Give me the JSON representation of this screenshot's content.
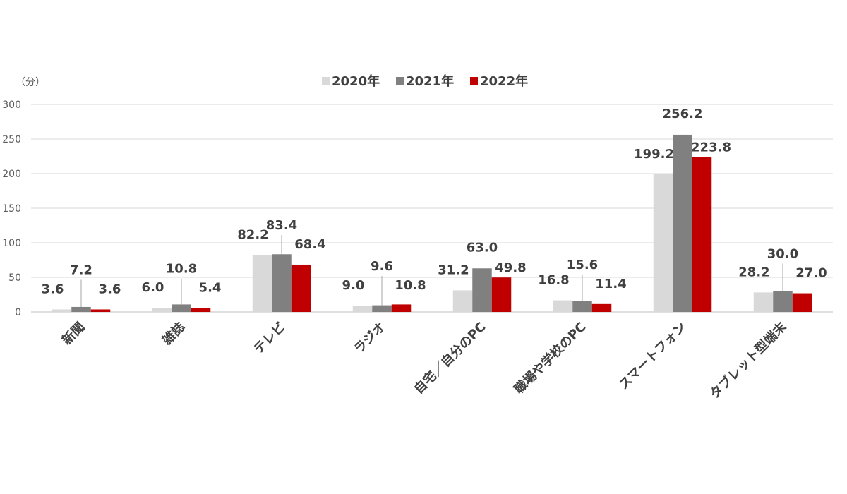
{
  "chart_data": {
    "type": "bar",
    "unit_label": "（分）",
    "categories": [
      "新聞",
      "雑誌",
      "テレビ",
      "ラジオ",
      "自宅／自分のPC",
      "職場や学校のPC",
      "スマートフォン",
      "タブレット型端末"
    ],
    "series": [
      {
        "name": "2020年",
        "color": "#d9d9d9",
        "values": [
          3.6,
          6.0,
          82.2,
          9.0,
          31.2,
          16.8,
          199.2,
          28.2
        ]
      },
      {
        "name": "2021年",
        "color": "#808080",
        "values": [
          7.2,
          10.8,
          83.4,
          9.6,
          63.0,
          15.6,
          256.2,
          30.0
        ]
      },
      {
        "name": "2022年",
        "color": "#c00000",
        "values": [
          3.6,
          5.4,
          68.4,
          10.8,
          49.8,
          11.4,
          223.8,
          27.0
        ]
      }
    ],
    "data_labels": [
      [
        "3.6",
        "6.0",
        "82.2",
        "9.0",
        "31.2",
        "16.8",
        "199.2",
        "28.2"
      ],
      [
        "7.2",
        "10.8",
        "83.4",
        "9.6",
        "63.0",
        "15.6",
        "256.2",
        "30.0"
      ],
      [
        "3.6",
        "5.4",
        "68.4",
        "10.8",
        "49.8",
        "11.4",
        "223.8",
        "27.0"
      ]
    ],
    "ylim": [
      0,
      300
    ],
    "yticks": [
      0,
      50,
      100,
      150,
      200,
      250,
      300
    ],
    "grid": true,
    "legend_position": "top-center",
    "gridline_color": "#d9d9d9"
  }
}
